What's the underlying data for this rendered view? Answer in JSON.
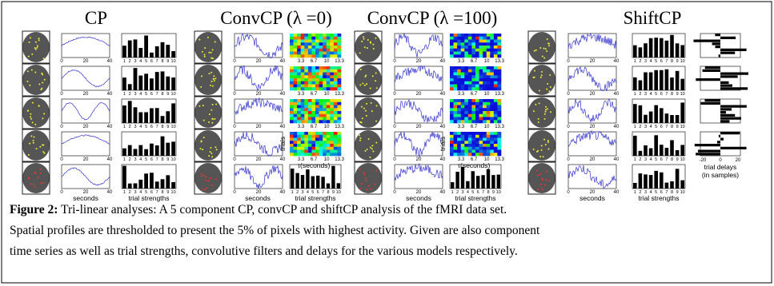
{
  "panels": [
    {
      "title": "CP"
    },
    {
      "title": "ConvCP (λ =0)"
    },
    {
      "title": "ConvCP (λ =100)"
    },
    {
      "title": "ShiftCP"
    }
  ],
  "axis_labels": {
    "seconds": "seconds",
    "trial_strengths": "trial strengths",
    "trials": "trials",
    "tau": "τ(seconds)",
    "trial_delays": "trial delays",
    "in_samples": "(in samples)"
  },
  "ticks": {
    "time": [
      "0",
      "20",
      "40"
    ],
    "bars": [
      "1",
      "2",
      "3",
      "4",
      "5",
      "6",
      "7",
      "8",
      "9",
      "10"
    ],
    "conv": [
      "3.3",
      "6.7",
      "10",
      "13.3"
    ],
    "delays": [
      "-20",
      "0",
      "20"
    ]
  },
  "caption": {
    "label": "Figure 2:",
    "lines": [
      "Tri-linear analyses: A 5 component CP, convCP and shiftCP analysis of the fMRI data set.",
      "Spatial profiles are thresholded to present the 5% of pixels with highest activity. Given are also component",
      "time series as well as trial strengths, convolutive filters and delays for the various models respectively."
    ]
  }
}
